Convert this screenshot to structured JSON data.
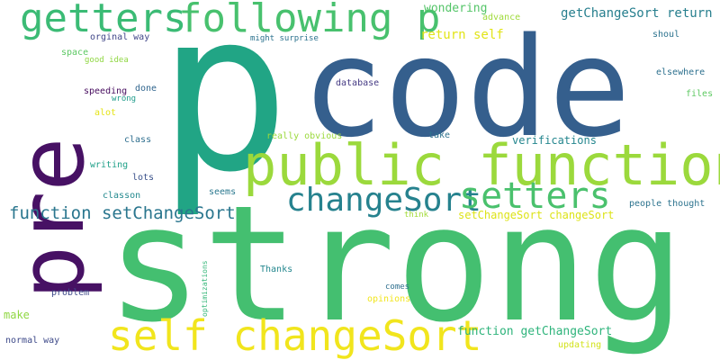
{
  "words": [
    {
      "text": "p",
      "color": "#21a585"
    },
    {
      "text": "code",
      "color": "#355f8d"
    },
    {
      "text": "strong",
      "color": "#44bf70"
    },
    {
      "text": "pre",
      "color": "#471164"
    },
    {
      "text": "public function",
      "color": "#9bd93c"
    },
    {
      "text": "getters",
      "color": "#3bbb75"
    },
    {
      "text": "following p",
      "color": "#48c16e"
    },
    {
      "text": "self changeSort",
      "color": "#f1e51d"
    },
    {
      "text": "changeSort",
      "color": "#26828e"
    },
    {
      "text": "setters",
      "color": "#4ac16d"
    },
    {
      "text": "function setChangeSort",
      "color": "#2a768e"
    },
    {
      "text": "wondering",
      "color": "#54c568"
    },
    {
      "text": "getChangeSort return",
      "color": "#277f8e"
    },
    {
      "text": "return self",
      "color": "#e2e418"
    },
    {
      "text": "advance",
      "color": "#9fda3a"
    },
    {
      "text": "shoul",
      "color": "#2c738e"
    },
    {
      "text": "orginal way",
      "color": "#404688"
    },
    {
      "text": "might surprise",
      "color": "#2c728e"
    },
    {
      "text": "space",
      "color": "#5cc863"
    },
    {
      "text": "good idea",
      "color": "#90d743"
    },
    {
      "text": "elsewhere",
      "color": "#2d708e"
    },
    {
      "text": "database",
      "color": "#443983"
    },
    {
      "text": "speeding",
      "color": "#460b5e"
    },
    {
      "text": "wrong",
      "color": "#1e9b8a"
    },
    {
      "text": "done",
      "color": "#31668e"
    },
    {
      "text": "files",
      "color": "#5ec962"
    },
    {
      "text": "alot",
      "color": "#e5e419"
    },
    {
      "text": "class",
      "color": "#2e6e8e"
    },
    {
      "text": "really obvious",
      "color": "#9bd93c"
    },
    {
      "text": "take",
      "color": "#2d718e"
    },
    {
      "text": "verifications",
      "color": "#24868e"
    },
    {
      "text": "writing",
      "color": "#1fa088"
    },
    {
      "text": "lots",
      "color": "#3b528b"
    },
    {
      "text": "classon",
      "color": "#23898e"
    },
    {
      "text": "seems",
      "color": "#2a788e"
    },
    {
      "text": "think",
      "color": "#a2da37"
    },
    {
      "text": "setChangeSort changeSort",
      "color": "#dde318"
    },
    {
      "text": "people thought",
      "color": "#2c738e"
    },
    {
      "text": "optimizations",
      "color": "#35b779"
    },
    {
      "text": "Thanks",
      "color": "#24878e"
    },
    {
      "text": "comes",
      "color": "#2e6f8e"
    },
    {
      "text": "problem",
      "color": "#3e4989"
    },
    {
      "text": "opinions",
      "color": "#f1e51d"
    },
    {
      "text": "make",
      "color": "#90d743"
    },
    {
      "text": "function getChangeSort",
      "color": "#2fb47c"
    },
    {
      "text": "normal way",
      "color": "#3e4a89"
    },
    {
      "text": "updating",
      "color": "#d2e21b"
    }
  ]
}
